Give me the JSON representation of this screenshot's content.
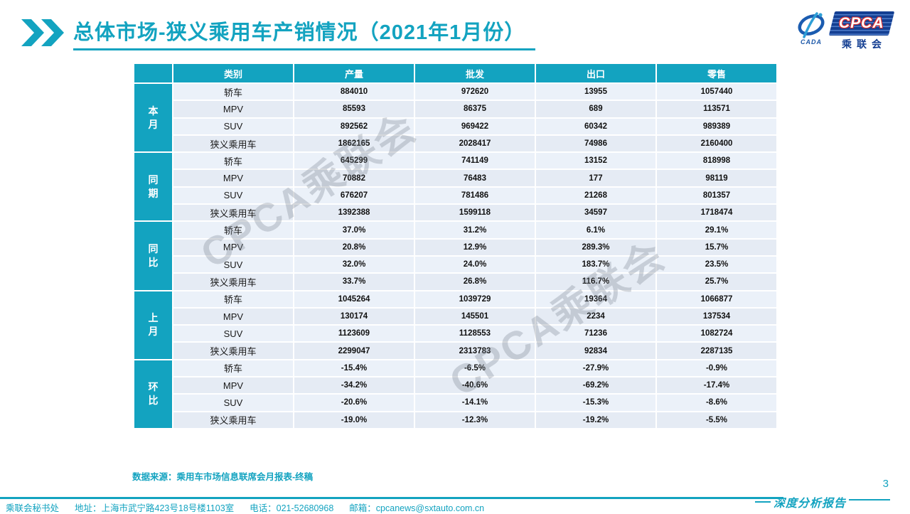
{
  "title": "总体市场-狭义乘用车产销情况（2021年1月份）",
  "logo": {
    "cpca": "CPCA",
    "cada": "CADA",
    "subtitle": "乘联会"
  },
  "colors": {
    "teal": "#13A3C0",
    "row_bg": "#EBF1F9",
    "logo_blue": "#143F92",
    "logo_red": "#D92B2B"
  },
  "watermark": {
    "text": "CPCA乘联会"
  },
  "table": {
    "headers": [
      "类别",
      "产量",
      "批发",
      "出口",
      "零售"
    ],
    "groups": [
      {
        "label": "本月",
        "rows": [
          {
            "category": "轿车",
            "values": [
              "884010",
              "972620",
              "13955",
              "1057440"
            ]
          },
          {
            "category": "MPV",
            "values": [
              "85593",
              "86375",
              "689",
              "113571"
            ]
          },
          {
            "category": "SUV",
            "values": [
              "892562",
              "969422",
              "60342",
              "989389"
            ]
          },
          {
            "category": "狭义乘用车",
            "values": [
              "1862165",
              "2028417",
              "74986",
              "2160400"
            ]
          }
        ]
      },
      {
        "label": "同期",
        "rows": [
          {
            "category": "轿车",
            "values": [
              "645299",
              "741149",
              "13152",
              "818998"
            ]
          },
          {
            "category": "MPV",
            "values": [
              "70882",
              "76483",
              "177",
              "98119"
            ]
          },
          {
            "category": "SUV",
            "values": [
              "676207",
              "781486",
              "21268",
              "801357"
            ]
          },
          {
            "category": "狭义乘用车",
            "values": [
              "1392388",
              "1599118",
              "34597",
              "1718474"
            ]
          }
        ]
      },
      {
        "label": "同比",
        "rows": [
          {
            "category": "轿车",
            "values": [
              "37.0%",
              "31.2%",
              "6.1%",
              "29.1%"
            ]
          },
          {
            "category": "MPV",
            "values": [
              "20.8%",
              "12.9%",
              "289.3%",
              "15.7%"
            ]
          },
          {
            "category": "SUV",
            "values": [
              "32.0%",
              "24.0%",
              "183.7%",
              "23.5%"
            ]
          },
          {
            "category": "狭义乘用车",
            "values": [
              "33.7%",
              "26.8%",
              "116.7%",
              "25.7%"
            ]
          }
        ]
      },
      {
        "label": "上月",
        "rows": [
          {
            "category": "轿车",
            "values": [
              "1045264",
              "1039729",
              "19364",
              "1066877"
            ]
          },
          {
            "category": "MPV",
            "values": [
              "130174",
              "145501",
              "2234",
              "137534"
            ]
          },
          {
            "category": "SUV",
            "values": [
              "1123609",
              "1128553",
              "71236",
              "1082724"
            ]
          },
          {
            "category": "狭义乘用车",
            "values": [
              "2299047",
              "2313783",
              "92834",
              "2287135"
            ]
          }
        ]
      },
      {
        "label": "环比",
        "rows": [
          {
            "category": "轿车",
            "values": [
              "-15.4%",
              "-6.5%",
              "-27.9%",
              "-0.9%"
            ]
          },
          {
            "category": "MPV",
            "values": [
              "-34.2%",
              "-40.6%",
              "-69.2%",
              "-17.4%"
            ]
          },
          {
            "category": "SUV",
            "values": [
              "-20.6%",
              "-14.1%",
              "-15.3%",
              "-8.6%"
            ]
          },
          {
            "category": "狭义乘用车",
            "values": [
              "-19.0%",
              "-12.3%",
              "-19.2%",
              "-5.5%"
            ]
          }
        ]
      }
    ]
  },
  "source_note": "数据来源：乘用车市场信息联席会月报表-终稿",
  "footer": {
    "items": [
      "乘联会秘书处",
      "地址：上海市武宁路423号18号楼1103室",
      "电话：021-52680968",
      "邮箱：cpcanews@sxtauto.com.cn"
    ],
    "report_label": "深度分析报告",
    "page_number": "3"
  }
}
